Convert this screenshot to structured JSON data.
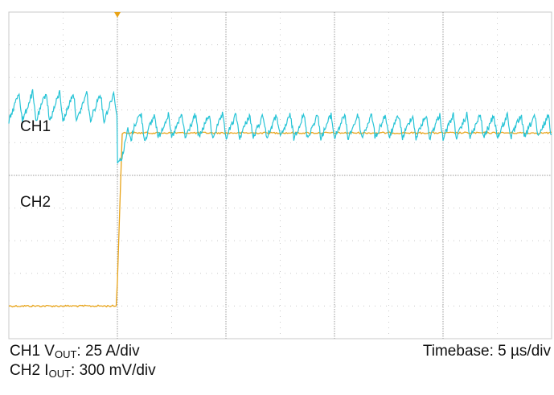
{
  "chart_data": {
    "type": "line",
    "title": "",
    "xlabel": "",
    "ylabel": "",
    "x_divisions": 10,
    "y_divisions": 10,
    "grid": true,
    "trigger_marker_division": 2,
    "series": [
      {
        "name": "CH1",
        "color": "#E8A317",
        "baseline_low_div": 9.0,
        "baseline_high_div": 3.7,
        "step_at_div": 2.0,
        "description_points_div": [
          [
            0,
            9.05
          ],
          [
            1.95,
            9.05
          ],
          [
            2.05,
            3.75
          ],
          [
            5,
            3.72
          ],
          [
            10,
            3.72
          ]
        ]
      },
      {
        "name": "CH2",
        "color": "#27C4D6",
        "pre_step_level_div": 2.9,
        "post_step_level_div": 3.5,
        "step_at_div": 2.0,
        "ripple_period_div": 0.25,
        "ripple_amplitude_div": 0.45
      }
    ],
    "labels": {
      "ch1": "CH1",
      "ch2": "CH2"
    }
  },
  "legend": {
    "ch1_prefix": "CH1 V",
    "ch1_sub": "OUT",
    "ch1_suffix": ": 25 A/div",
    "ch2_prefix": "CH2 I",
    "ch2_sub": "OUT",
    "ch2_suffix": ": 300 mV/div",
    "timebase": "Timebase: 5 µs/div"
  }
}
